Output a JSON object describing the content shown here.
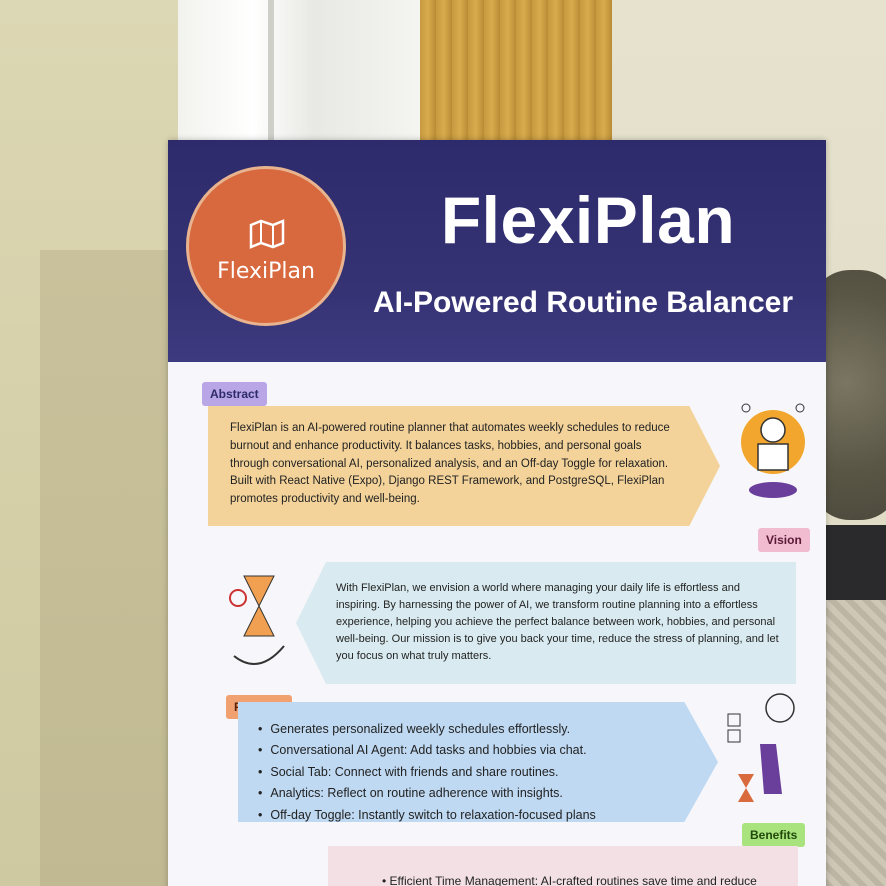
{
  "banner": {
    "logo_text": "FlexiPlan",
    "title": "FlexiPlan",
    "subtitle": "AI-Powered Routine Balancer",
    "colors": {
      "header": "#2d2b6b",
      "logo": "#d8693e"
    }
  },
  "sections": {
    "abstract": {
      "tag": "Abstract",
      "text": "FlexiPlan is an AI-powered routine planner that automates weekly schedules to reduce burnout and enhance productivity. It balances tasks, hobbies, and personal goals through conversational AI, personalized analysis, and an Off-day Toggle for relaxation. Built with React Native (Expo), Django REST Framework, and PostgreSQL, FlexiPlan promotes productivity and well-being."
    },
    "vision": {
      "tag": "Vision",
      "text": "With FlexiPlan, we envision a world where managing your daily life is effortless and inspiring. By harnessing the power of AI, we transform routine planning into a effortless experience, helping you achieve the perfect balance between work, hobbies, and personal well-being. Our mission is to give you back your time, reduce the stress of planning, and let you focus on what truly matters."
    },
    "features": {
      "tag": "Features",
      "items": [
        "Generates personalized weekly schedules effortlessly.",
        "Conversational AI Agent: Add tasks and hobbies via chat.",
        "Social Tab: Connect with friends and share routines.",
        "Analytics: Reflect on routine adherence with insights.",
        "Off-day Toggle: Instantly switch to relaxation-focused plans"
      ]
    },
    "benefits": {
      "tag": "Benefits",
      "first_item": "Efficient Time Management: AI-crafted routines save time and reduce planning effort."
    }
  }
}
